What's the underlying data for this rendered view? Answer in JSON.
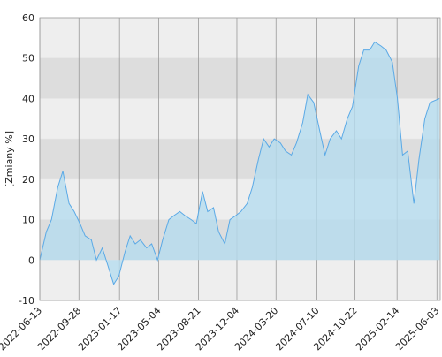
{
  "chart_data": {
    "type": "area",
    "y_label": "[Zmiany %]",
    "x": [
      "2022-06-13",
      "2022-07-01",
      "2022-07-15",
      "2022-08-01",
      "2022-08-15",
      "2022-09-01",
      "2022-09-15",
      "2022-10-01",
      "2022-10-15",
      "2022-11-01",
      "2022-11-15",
      "2022-12-01",
      "2022-12-15",
      "2023-01-01",
      "2023-01-15",
      "2023-02-01",
      "2023-02-15",
      "2023-03-01",
      "2023-03-15",
      "2023-04-01",
      "2023-04-15",
      "2023-05-01",
      "2023-05-15",
      "2023-06-01",
      "2023-06-15",
      "2023-07-01",
      "2023-07-15",
      "2023-08-01",
      "2023-08-15",
      "2023-09-01",
      "2023-09-15",
      "2023-10-01",
      "2023-10-15",
      "2023-11-01",
      "2023-11-15",
      "2023-12-01",
      "2023-12-15",
      "2024-01-01",
      "2024-01-15",
      "2024-02-01",
      "2024-02-15",
      "2024-03-01",
      "2024-03-15",
      "2024-04-01",
      "2024-04-15",
      "2024-05-01",
      "2024-05-15",
      "2024-06-01",
      "2024-06-15",
      "2024-07-01",
      "2024-07-15",
      "2024-08-01",
      "2024-08-15",
      "2024-09-01",
      "2024-09-15",
      "2024-10-01",
      "2024-10-15",
      "2024-11-01",
      "2024-11-15",
      "2024-12-01",
      "2024-12-15",
      "2025-01-01",
      "2025-01-15",
      "2025-02-01",
      "2025-02-15",
      "2025-03-01",
      "2025-03-15",
      "2025-04-01",
      "2025-04-15",
      "2025-05-01",
      "2025-05-15",
      "2025-06-10"
    ],
    "series": [
      {
        "color": "#5aa9e6",
        "fill": "#b5dcef",
        "values": [
          0,
          7,
          10,
          18,
          22,
          14,
          12,
          9,
          6,
          5,
          0,
          3,
          -1,
          -6,
          -4,
          2,
          6,
          4,
          5,
          3,
          4,
          0,
          5,
          10,
          11,
          12,
          11,
          10,
          9,
          17,
          12,
          13,
          7,
          4,
          10,
          11,
          12,
          14,
          18,
          25,
          30,
          28,
          30,
          29,
          27,
          26,
          29,
          34,
          41,
          39,
          33,
          26,
          30,
          32,
          30,
          35,
          38,
          48,
          52,
          52,
          54,
          53,
          52,
          49,
          40,
          26,
          27,
          14,
          25,
          35,
          39,
          40
        ]
      }
    ],
    "xlim": [
      "2022-06-13",
      "2025-06-12"
    ],
    "xticks": [
      "2022-06-13",
      "2022-09-28",
      "2023-01-17",
      "2023-05-04",
      "2023-08-21",
      "2023-12-04",
      "2024-03-20",
      "2024-07-10",
      "2024-10-22",
      "2025-02-14",
      "2025-06-03"
    ],
    "ylim": [
      -10,
      60
    ],
    "yticks": [
      -10,
      0,
      10,
      20,
      30,
      40,
      50,
      60
    ],
    "grid": true
  }
}
